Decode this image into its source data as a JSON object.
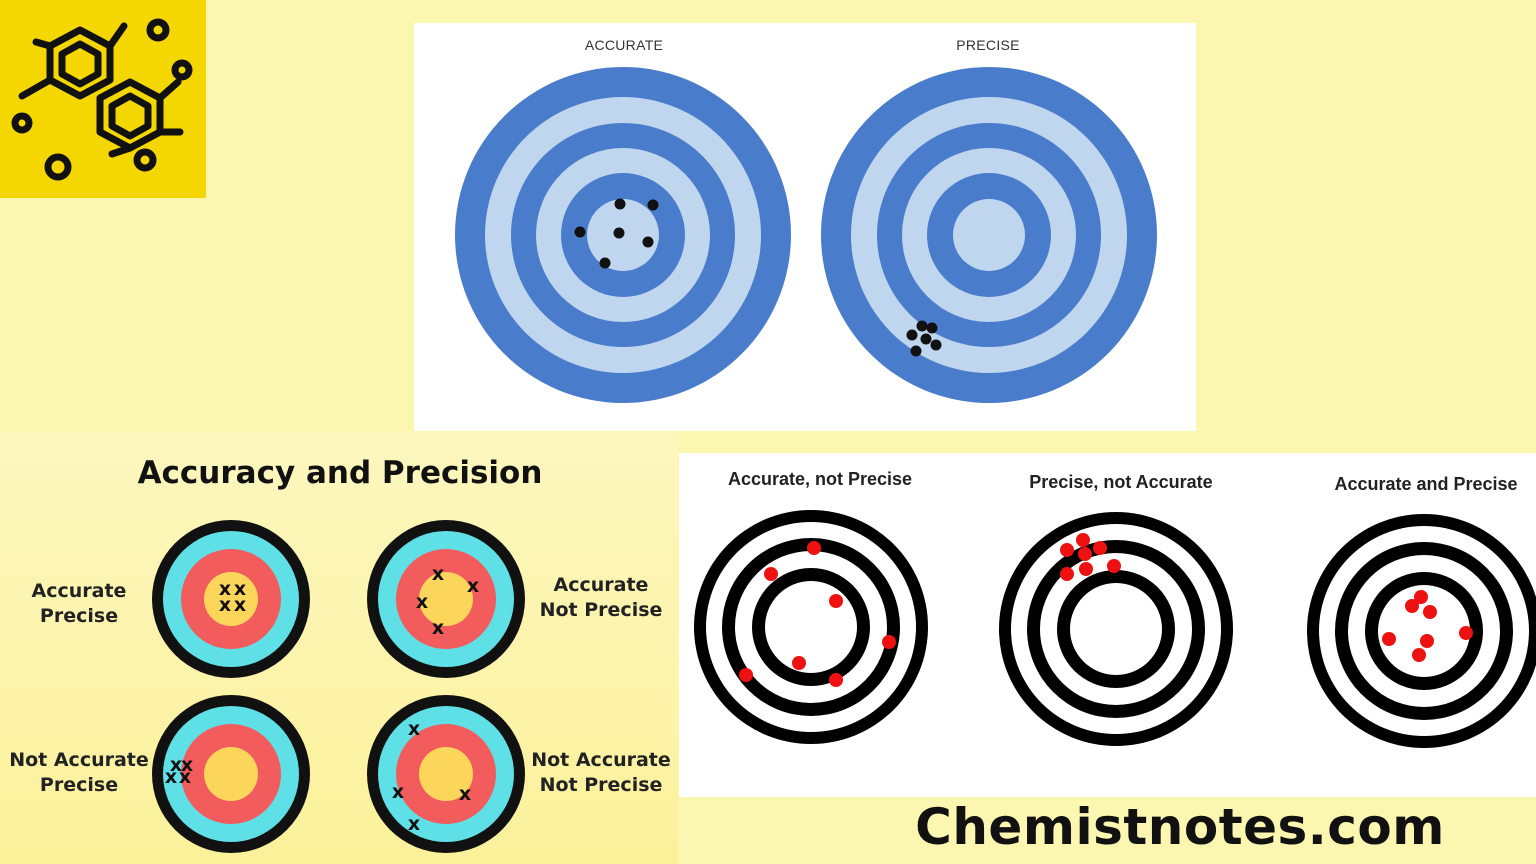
{
  "logo": {
    "icon": "molecule-icon",
    "background": "#f4d600",
    "stroke": "#111111"
  },
  "top_panel": {
    "targets": [
      {
        "title": "ACCURATE",
        "dot_color": "#111111"
      },
      {
        "title": "PRECISE",
        "dot_color": "#111111"
      }
    ],
    "ring_dark": "#4a7ccc",
    "ring_light": "#bfd6ee"
  },
  "left_panel": {
    "heading": "Accuracy and Precision",
    "quadrants": [
      {
        "label_line1": "Accurate",
        "label_line2": "Precise"
      },
      {
        "label_line1": "Accurate",
        "label_line2": "Not Precise"
      },
      {
        "label_line1": "Not Accurate",
        "label_line2": "Precise"
      },
      {
        "label_line1": "Not Accurate",
        "label_line2": "Not Precise"
      }
    ],
    "mark": "x",
    "colors": {
      "outer": "#111111",
      "cyan": "#5fe0e6",
      "red": "#f25c5c",
      "center": "#fcd65a"
    }
  },
  "right_panel": {
    "targets": [
      {
        "title": "Accurate, not Precise"
      },
      {
        "title": "Precise, not Accurate"
      },
      {
        "title": "Accurate and Precise"
      }
    ],
    "hit_color": "#ee1111"
  },
  "footer": {
    "site": "Chemistnotes.com"
  }
}
